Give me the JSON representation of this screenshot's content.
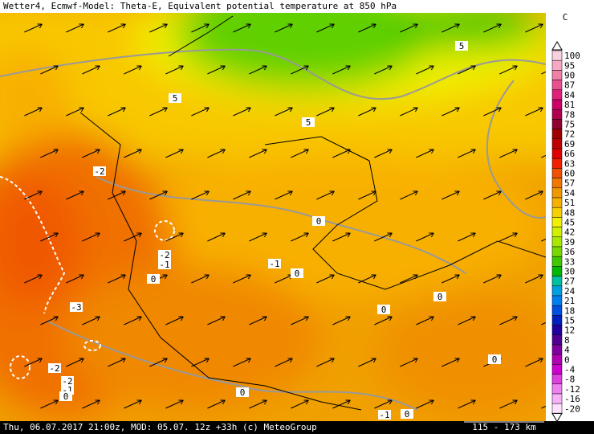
{
  "title": "Wetter4, Ecmwf-Model: Theta-E, Equivalent potential temperature at 850 hPa",
  "footer": {
    "info": "Thu, 06.07.2017 21:00z, MOD: 05.07. 12z +33h (c) MeteoGroup",
    "scale": "115 - 173 km"
  },
  "legend": {
    "unit": "C",
    "entries": [
      {
        "label": "100",
        "color": "#f8d0e0"
      },
      {
        "label": "95",
        "color": "#f4a8c4"
      },
      {
        "label": "90",
        "color": "#f080a8"
      },
      {
        "label": "87",
        "color": "#e85090"
      },
      {
        "label": "84",
        "color": "#e0207a"
      },
      {
        "label": "81",
        "color": "#d0006a"
      },
      {
        "label": "78",
        "color": "#b00050"
      },
      {
        "label": "75",
        "color": "#900030"
      },
      {
        "label": "72",
        "color": "#a00000"
      },
      {
        "label": "69",
        "color": "#c00000"
      },
      {
        "label": "66",
        "color": "#e00000"
      },
      {
        "label": "63",
        "color": "#f02000"
      },
      {
        "label": "60",
        "color": "#f05000"
      },
      {
        "label": "57",
        "color": "#f07800"
      },
      {
        "label": "54",
        "color": "#f09800"
      },
      {
        "label": "51",
        "color": "#f8b000"
      },
      {
        "label": "48",
        "color": "#f8d000"
      },
      {
        "label": "45",
        "color": "#f0f000"
      },
      {
        "label": "42",
        "color": "#d0f000"
      },
      {
        "label": "39",
        "color": "#a8e800"
      },
      {
        "label": "36",
        "color": "#78d800"
      },
      {
        "label": "33",
        "color": "#40c800"
      },
      {
        "label": "30",
        "color": "#00b800"
      },
      {
        "label": "27",
        "color": "#00c0a0"
      },
      {
        "label": "24",
        "color": "#00a0e0"
      },
      {
        "label": "21",
        "color": "#0080f0"
      },
      {
        "label": "18",
        "color": "#0050e0"
      },
      {
        "label": "15",
        "color": "#0020c0"
      },
      {
        "label": "12",
        "color": "#2000a0"
      },
      {
        "label": "8",
        "color": "#500090"
      },
      {
        "label": "4",
        "color": "#8000a0"
      },
      {
        "label": "0",
        "color": "#b000b0"
      },
      {
        "label": "-4",
        "color": "#d000d0"
      },
      {
        "label": "-8",
        "color": "#e040e0"
      },
      {
        "label": "-12",
        "color": "#f080f0"
      },
      {
        "label": "-16",
        "color": "#f8b0f8"
      },
      {
        "label": "-20",
        "color": "#ffe0ff"
      }
    ]
  },
  "contour_labels": [
    "5",
    "5",
    "5",
    "-2",
    "0",
    "-2",
    "-1",
    "0",
    "-1",
    "0",
    "-3",
    "0",
    "0",
    "-2",
    "-2",
    "-1",
    "0",
    "0",
    "0",
    "-1",
    "0"
  ]
}
